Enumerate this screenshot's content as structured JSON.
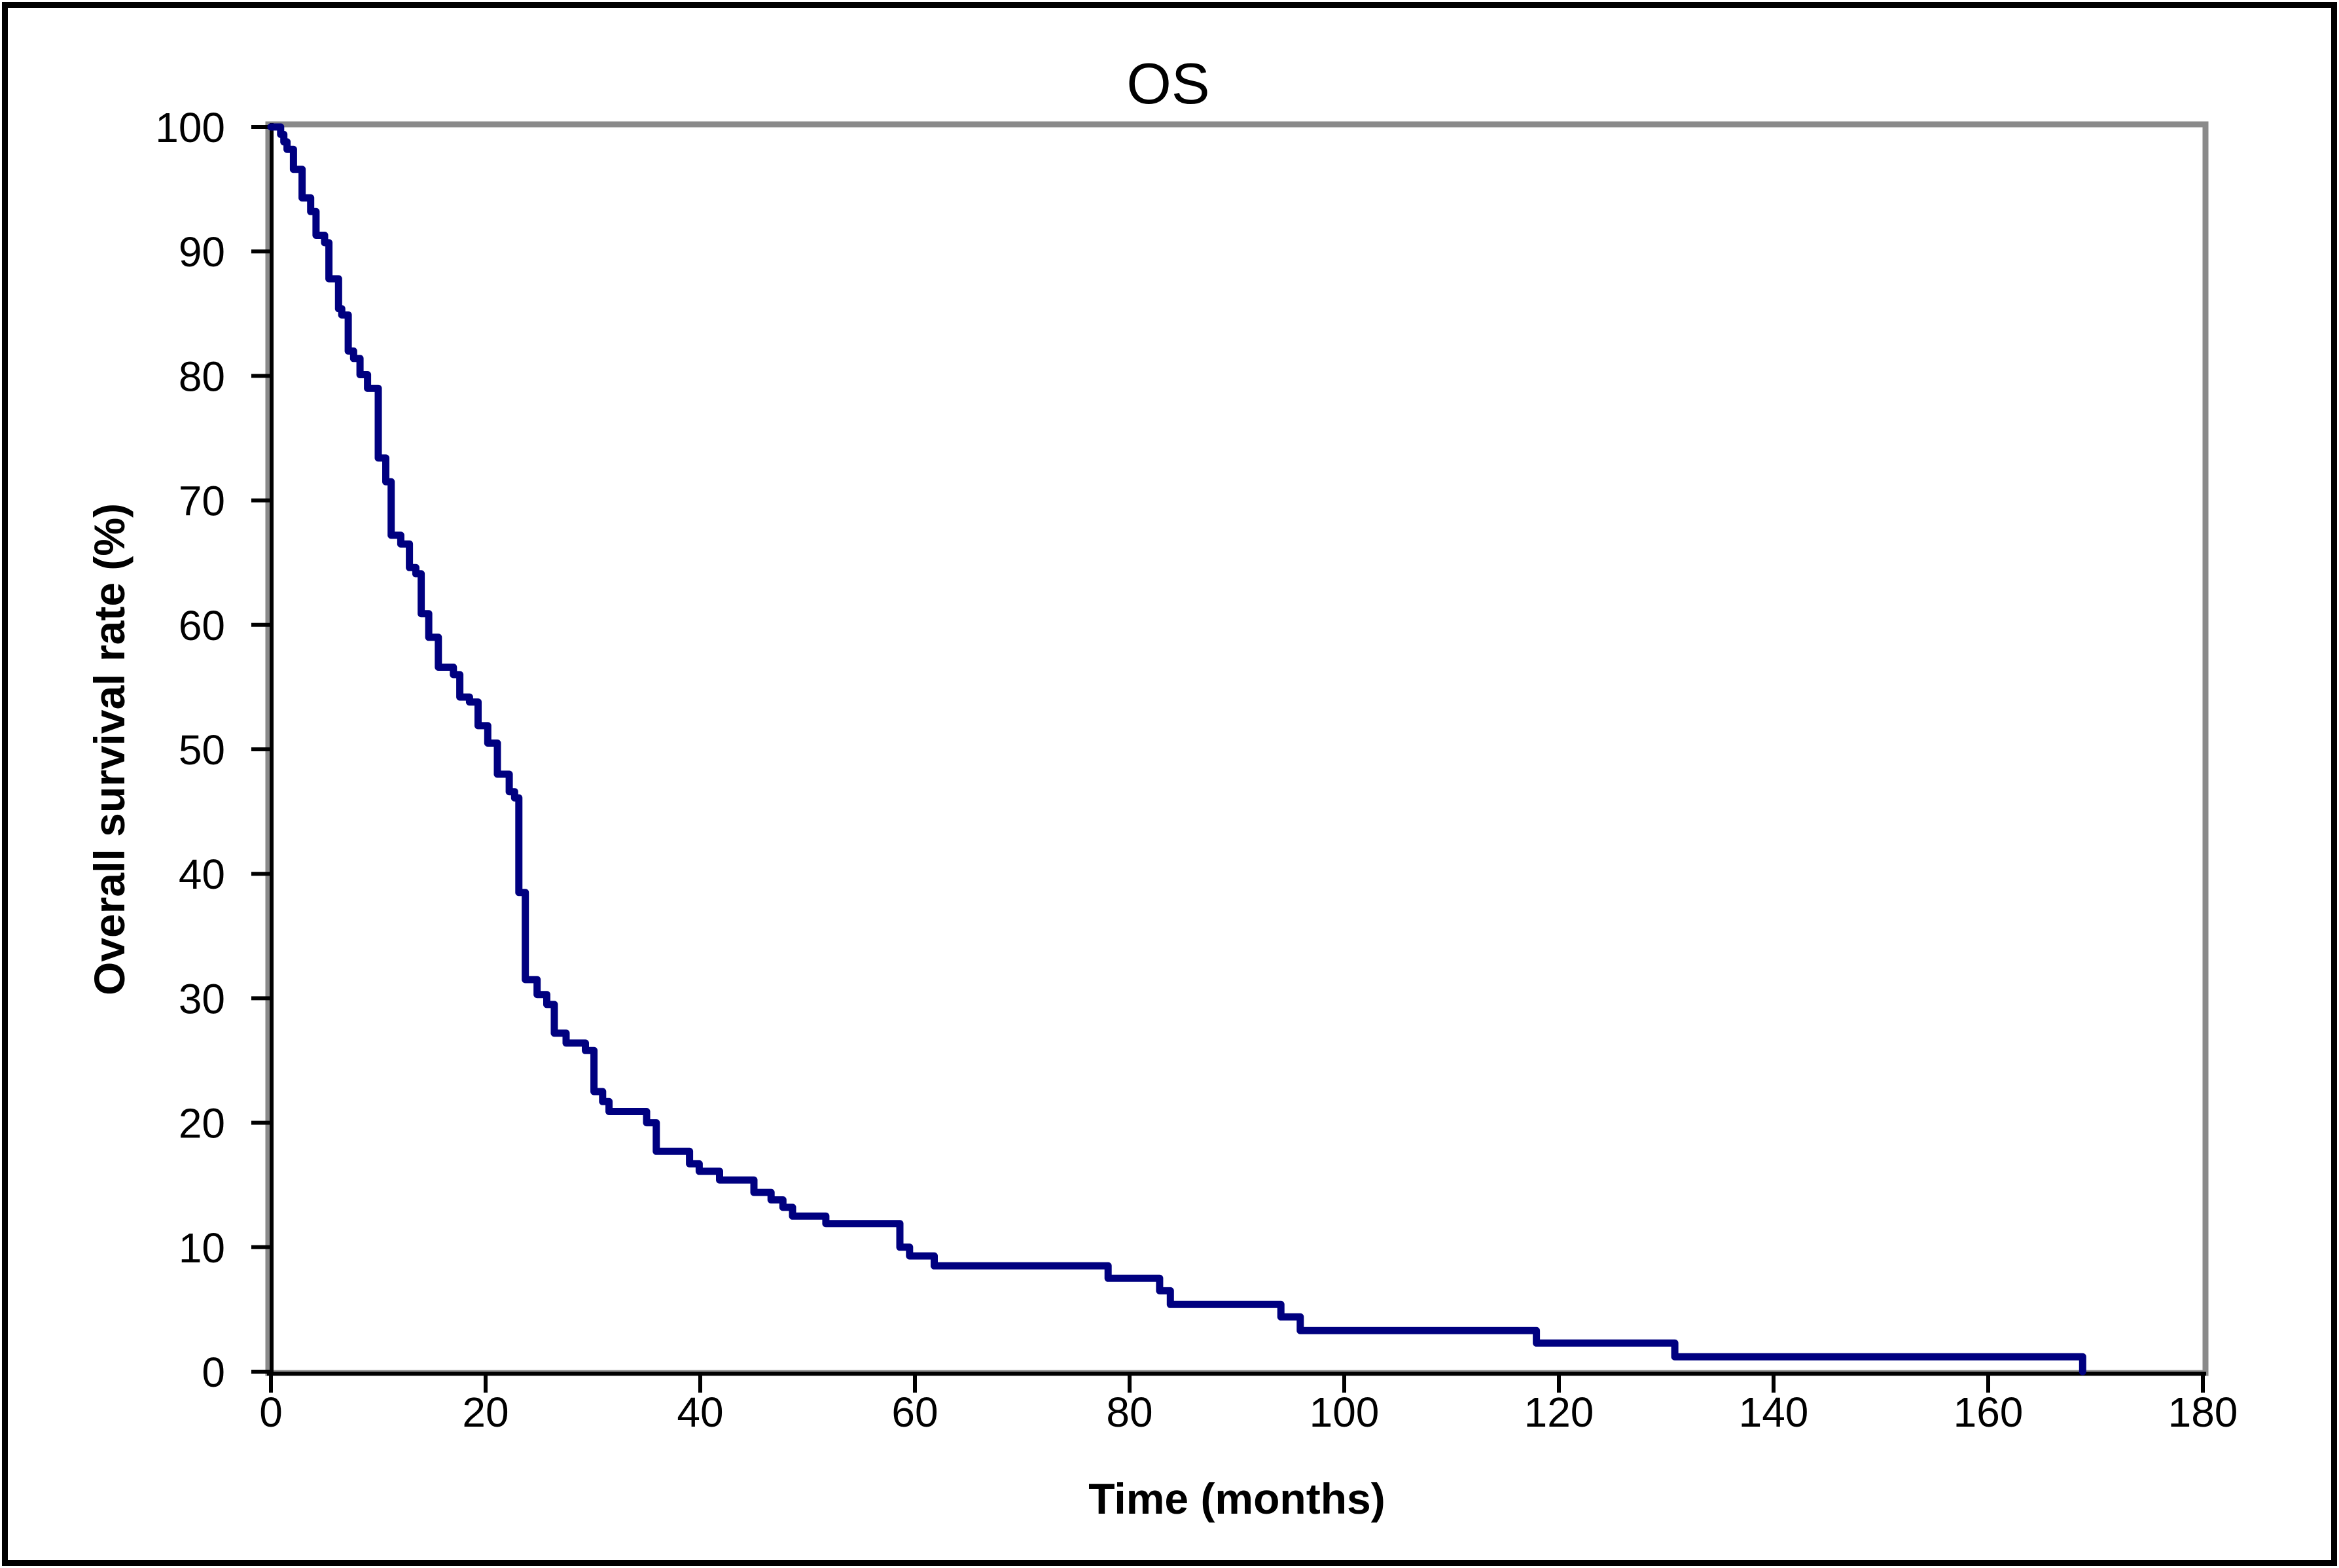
{
  "chart_data": {
    "type": "line",
    "subtype": "kaplan-meier-step",
    "title": "OS",
    "xlabel": "Time (months)",
    "ylabel": "Overall survival rate (%)",
    "xlim": [
      0,
      180
    ],
    "ylim": [
      0,
      100
    ],
    "x_ticks": [
      0,
      20,
      40,
      60,
      80,
      100,
      120,
      140,
      160,
      180
    ],
    "y_ticks": [
      0,
      10,
      20,
      30,
      40,
      50,
      60,
      70,
      80,
      90,
      100
    ],
    "grid": "off",
    "legend": "none",
    "style": {
      "curve_color": "#000080",
      "curve_width": 11,
      "plot_border_color": "#8a8a8a",
      "plot_border_width": 9,
      "axis_color": "#000000",
      "axis_width": 6,
      "tick_length": 28,
      "background": "#ffffff",
      "frame_color": "#000000"
    },
    "series": [
      {
        "name": "OS",
        "color": "#000080",
        "start": [
          0,
          100
        ],
        "steps": [
          [
            0.9,
            99.4
          ],
          [
            1.2,
            98.8
          ],
          [
            1.5,
            98.2
          ],
          [
            2.1,
            96.6
          ],
          [
            2.9,
            94.3
          ],
          [
            3.7,
            93.2
          ],
          [
            4.2,
            91.3
          ],
          [
            5.0,
            90.7
          ],
          [
            5.4,
            87.8
          ],
          [
            6.3,
            85.4
          ],
          [
            6.6,
            84.9
          ],
          [
            7.2,
            82.0
          ],
          [
            7.7,
            81.4
          ],
          [
            8.3,
            80.1
          ],
          [
            9.0,
            79.0
          ],
          [
            10.0,
            73.4
          ],
          [
            10.7,
            71.5
          ],
          [
            11.2,
            67.2
          ],
          [
            12.1,
            66.5
          ],
          [
            12.9,
            64.6
          ],
          [
            13.5,
            64.1
          ],
          [
            14.0,
            60.9
          ],
          [
            14.7,
            59.0
          ],
          [
            15.6,
            56.6
          ],
          [
            17.0,
            56.0
          ],
          [
            17.6,
            54.2
          ],
          [
            18.5,
            53.8
          ],
          [
            19.3,
            51.9
          ],
          [
            20.2,
            50.5
          ],
          [
            21.1,
            48.0
          ],
          [
            22.2,
            46.6
          ],
          [
            22.7,
            46.1
          ],
          [
            23.1,
            38.5
          ],
          [
            23.7,
            31.5
          ],
          [
            24.8,
            30.3
          ],
          [
            25.7,
            29.5
          ],
          [
            26.4,
            27.2
          ],
          [
            27.5,
            26.4
          ],
          [
            29.3,
            25.8
          ],
          [
            30.1,
            22.5
          ],
          [
            30.9,
            21.7
          ],
          [
            31.5,
            20.9
          ],
          [
            35.0,
            20.0
          ],
          [
            35.9,
            17.7
          ],
          [
            39.0,
            16.7
          ],
          [
            39.9,
            16.1
          ],
          [
            41.8,
            15.4
          ],
          [
            45.0,
            14.4
          ],
          [
            46.6,
            13.8
          ],
          [
            47.7,
            13.2
          ],
          [
            48.6,
            12.5
          ],
          [
            51.7,
            11.9
          ],
          [
            58.6,
            10.0
          ],
          [
            59.5,
            9.3
          ],
          [
            61.8,
            8.5
          ],
          [
            78.0,
            7.5
          ],
          [
            82.8,
            6.5
          ],
          [
            83.8,
            5.4
          ],
          [
            94.1,
            4.4
          ],
          [
            95.9,
            3.3
          ],
          [
            117.9,
            2.3
          ],
          [
            130.8,
            1.2
          ],
          [
            168.8,
            0.0
          ]
        ]
      }
    ]
  }
}
